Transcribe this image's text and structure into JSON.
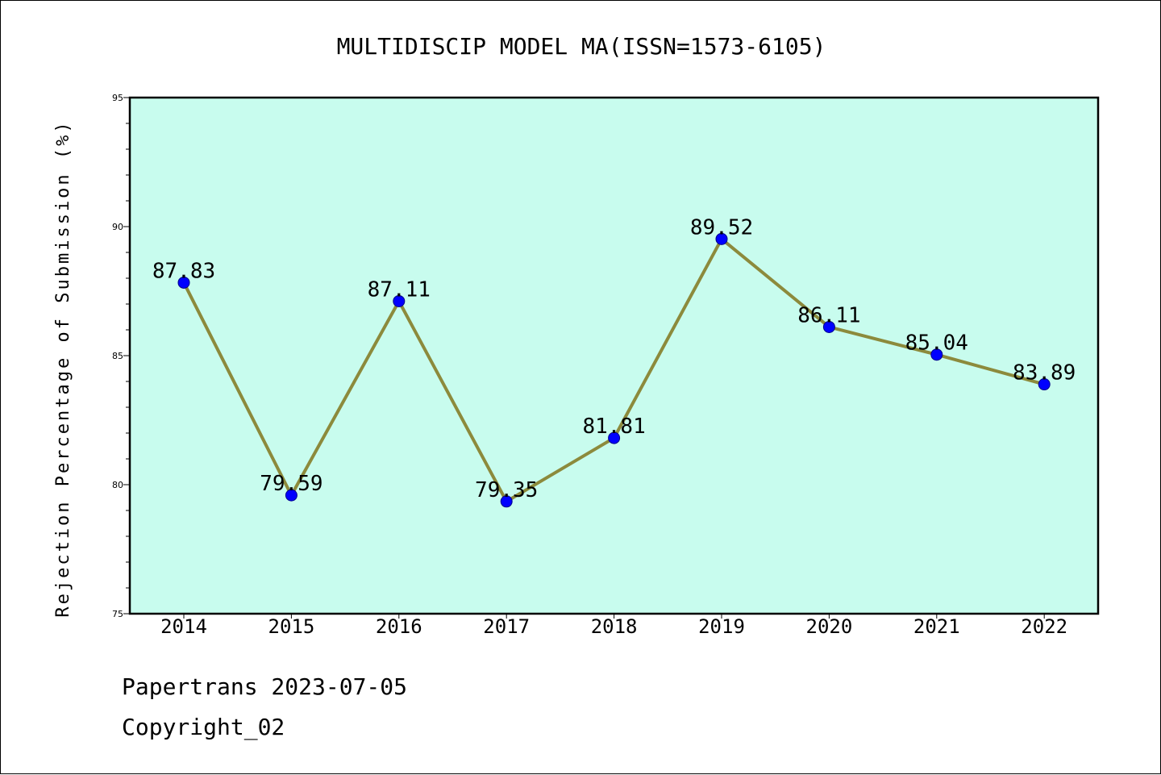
{
  "footer": {
    "line1": "Papertrans 2023-07-05",
    "line2": "Copyright_02"
  },
  "chart_data": {
    "type": "line",
    "title": "MULTIDISCIP MODEL MA(ISSN=1573-6105)",
    "xlabel": "",
    "ylabel": "Rejection Percentage of Submission (%)",
    "categories": [
      "2014",
      "2015",
      "2016",
      "2017",
      "2018",
      "2019",
      "2020",
      "2021",
      "2022"
    ],
    "series": [
      {
        "values": [
          87.83,
          79.59,
          87.11,
          79.35,
          81.81,
          89.52,
          86.11,
          85.04,
          83.89
        ],
        "labels": [
          "87.83",
          "79.59",
          "87.11",
          "79.35",
          "81.81",
          "89.52",
          "86.11",
          "85.04",
          "83.89"
        ]
      }
    ],
    "ylim": [
      75,
      95
    ],
    "yticks": [
      "75",
      "80",
      "85",
      "90",
      "95"
    ],
    "grid": false,
    "colors": {
      "plot_background": "#c8fcee",
      "line": "#8c8a3c",
      "marker": "#0000ff"
    }
  }
}
